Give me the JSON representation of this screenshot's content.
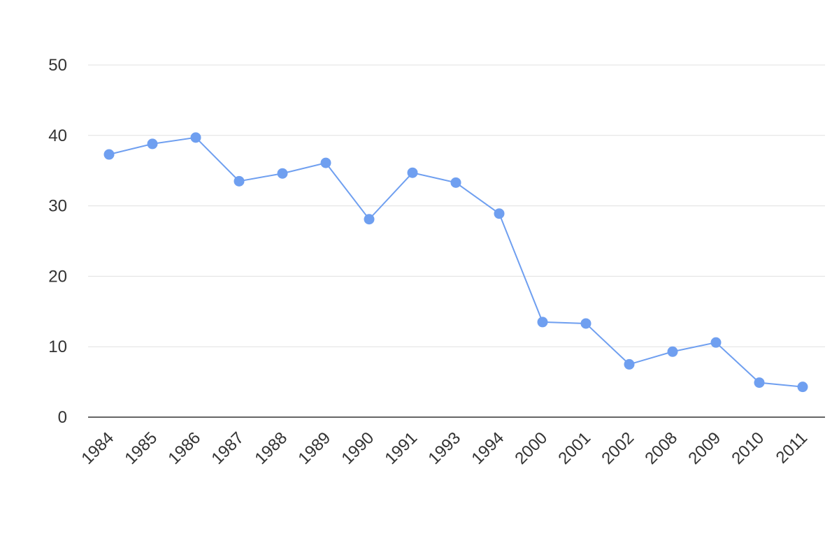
{
  "chart_data": {
    "type": "line",
    "title": "",
    "xlabel": "",
    "ylabel": "",
    "ylim": [
      0,
      50
    ],
    "yticks": [
      0,
      10,
      20,
      30,
      40,
      50
    ],
    "grid": true,
    "categories": [
      "1984",
      "1985",
      "1986",
      "1987",
      "1988",
      "1989",
      "1990",
      "1991",
      "1993",
      "1994",
      "2000",
      "2001",
      "2002",
      "2008",
      "2009",
      "2010",
      "2011"
    ],
    "series": [
      {
        "values": [
          37.3,
          38.8,
          39.7,
          33.5,
          34.6,
          36.1,
          28.1,
          34.7,
          33.3,
          28.9,
          13.5,
          13.3,
          7.5,
          9.3,
          10.6,
          4.9,
          4.3
        ],
        "color": "#6f9ff0"
      }
    ]
  }
}
